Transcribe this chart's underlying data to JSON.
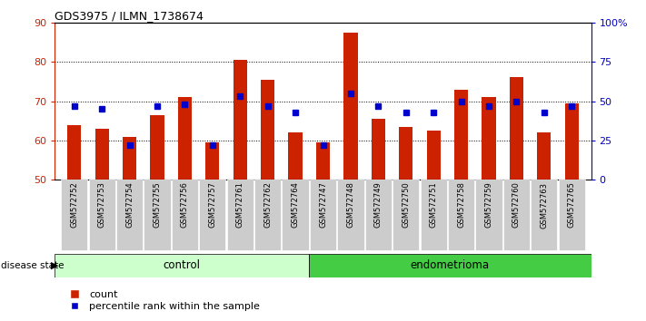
{
  "title": "GDS3975 / ILMN_1738674",
  "samples": [
    "GSM572752",
    "GSM572753",
    "GSM572754",
    "GSM572755",
    "GSM572756",
    "GSM572757",
    "GSM572761",
    "GSM572762",
    "GSM572764",
    "GSM572747",
    "GSM572748",
    "GSM572749",
    "GSM572750",
    "GSM572751",
    "GSM572758",
    "GSM572759",
    "GSM572760",
    "GSM572763",
    "GSM572765"
  ],
  "counts": [
    64.0,
    63.0,
    61.0,
    66.5,
    71.0,
    59.5,
    80.5,
    75.5,
    62.0,
    59.5,
    87.5,
    65.5,
    63.5,
    62.5,
    73.0,
    71.0,
    76.0,
    62.0,
    69.5
  ],
  "percentiles": [
    47,
    45,
    22,
    47,
    48,
    22,
    53,
    47,
    43,
    22,
    55,
    47,
    43,
    43,
    50,
    47,
    50,
    43,
    47
  ],
  "control_count": 9,
  "endometrioma_count": 10,
  "ylim_left": [
    50,
    90
  ],
  "ylim_right": [
    0,
    100
  ],
  "yticks_left": [
    50,
    60,
    70,
    80,
    90
  ],
  "yticks_right": [
    0,
    25,
    50,
    75,
    100
  ],
  "ytick_labels_right": [
    "0",
    "25",
    "50",
    "75",
    "100%"
  ],
  "bar_color": "#cc2200",
  "square_color": "#0000cc",
  "control_color": "#ccffcc",
  "endometrioma_color": "#44cc44",
  "tick_bg_color": "#cccccc",
  "bar_width": 0.5,
  "baseline": 50
}
